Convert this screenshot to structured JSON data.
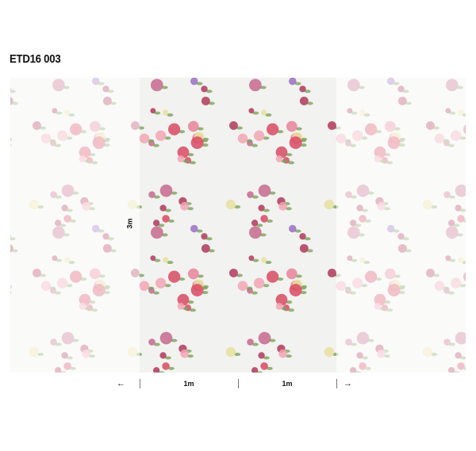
{
  "product_code": "ETD16 003",
  "dimensions": {
    "height_label": "3m",
    "panel_widths": [
      "1m",
      "1m"
    ],
    "left_arrow": "←",
    "right_arrow": "→"
  },
  "pattern": {
    "background": "#f2f2f0",
    "flower_colors": [
      "#d94a63",
      "#e8849a",
      "#9b6fc4",
      "#b03a5b",
      "#f2a6b4",
      "#e8e0a0",
      "#c56a8d"
    ],
    "leaf_color": "#7aa35a"
  }
}
